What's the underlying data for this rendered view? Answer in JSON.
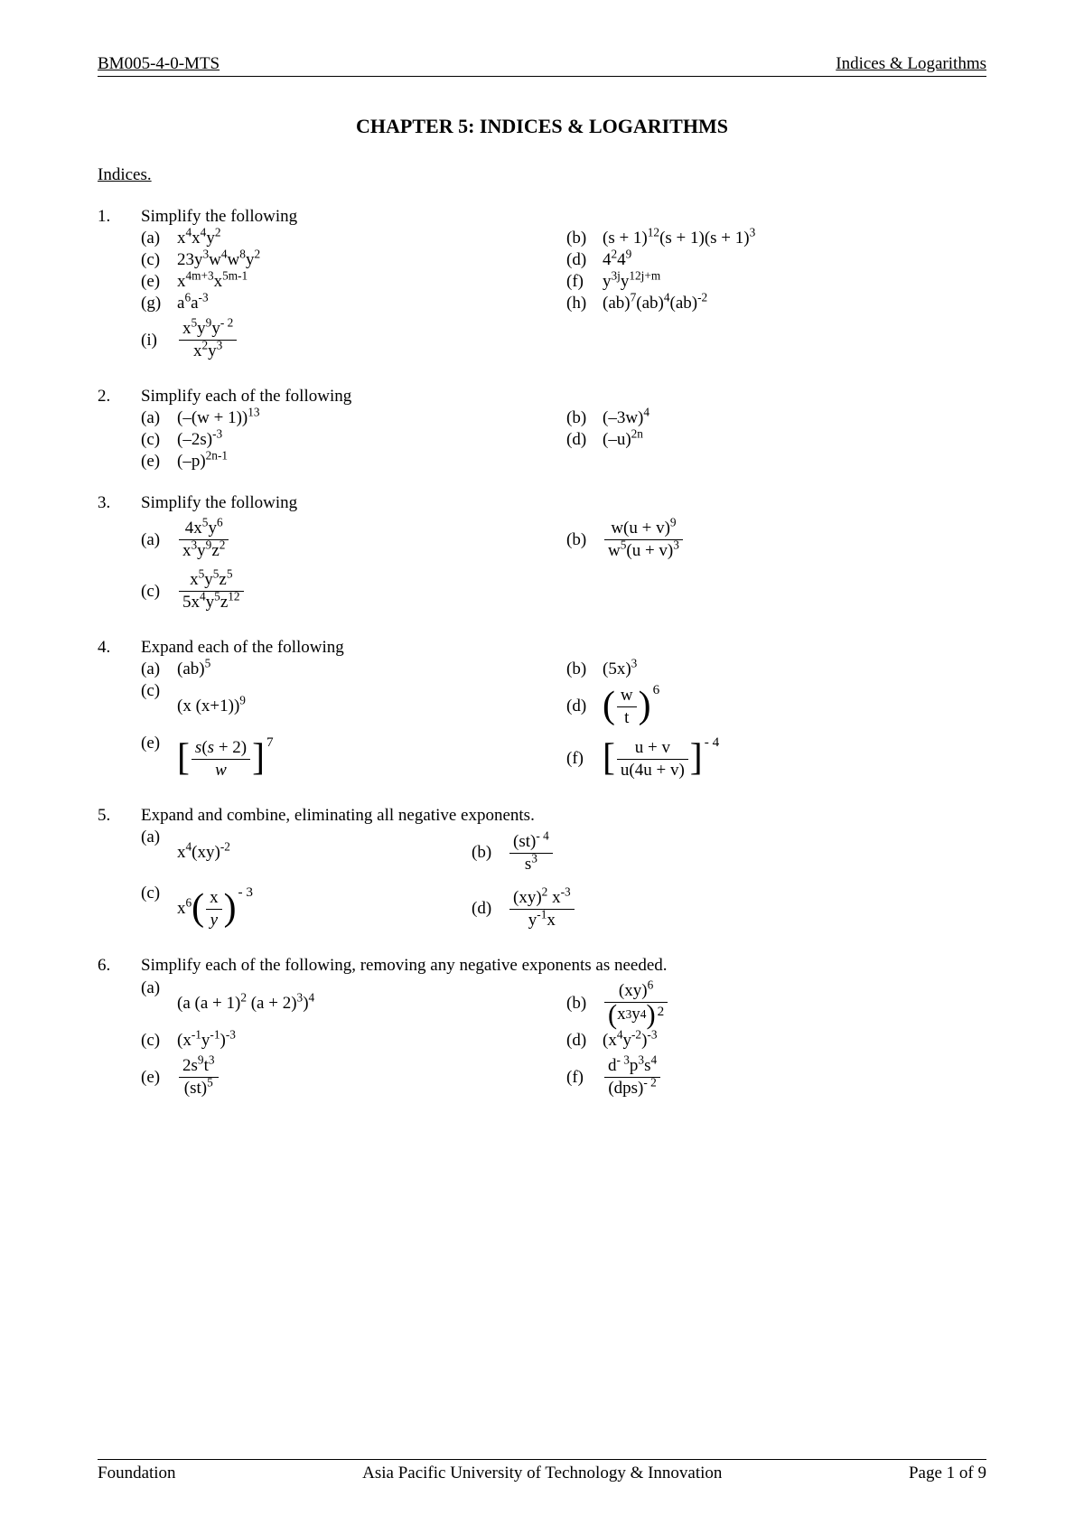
{
  "header": {
    "courseCode": "BM005-4-0-MTS",
    "topic": "Indices & Logarithms"
  },
  "chapterTitle": "CHAPTER 5: INDICES & LOGARITHMS",
  "sectionHeading": "Indices.",
  "questions": {
    "q1": {
      "num": "1.",
      "stem": "Simplify the following",
      "labels": {
        "a": "(a)",
        "b": "(b)",
        "c": "(c)",
        "d": "(d)",
        "e": "(e)",
        "f": "(f)",
        "g": "(g)",
        "h": "(h)",
        "i": "(i)"
      }
    },
    "q2": {
      "num": "2.",
      "stem": "Simplify each of the following",
      "labels": {
        "a": "(a)",
        "b": "(b)",
        "c": "(c)",
        "d": "(d)",
        "e": "(e)"
      }
    },
    "q3": {
      "num": "3.",
      "stem": "Simplify the following",
      "labels": {
        "a": "(a)",
        "b": "(b)",
        "c": "(c)"
      }
    },
    "q4": {
      "num": "4.",
      "stem": "Expand each of the following",
      "labels": {
        "a": "(a)",
        "b": "(b)",
        "c": "(c)",
        "d": "(d)",
        "e": "(e)",
        "f": "(f)"
      }
    },
    "q5": {
      "num": "5.",
      "stem": "Expand and combine, eliminating all negative exponents.",
      "labels": {
        "a": "(a)",
        "b": "(b)",
        "c": "(c)",
        "d": "(d)"
      }
    },
    "q6": {
      "num": "6.",
      "stem": "Simplify each of the following, removing any negative exponents as needed.",
      "labels": {
        "a": "(a)",
        "b": "(b)",
        "c": "(c)",
        "d": "(d)",
        "e": "(e)",
        "f": "(f)"
      }
    }
  },
  "footer": {
    "left": "Foundation",
    "center": "Asia Pacific University of Technology & Innovation",
    "right": "Page 1 of 9"
  },
  "colors": {
    "text": "#000000",
    "background": "#ffffff",
    "rule": "#000000"
  },
  "typography": {
    "bodyFontSize": 19,
    "titleFontSize": 22,
    "fontFamily": "Times New Roman"
  }
}
